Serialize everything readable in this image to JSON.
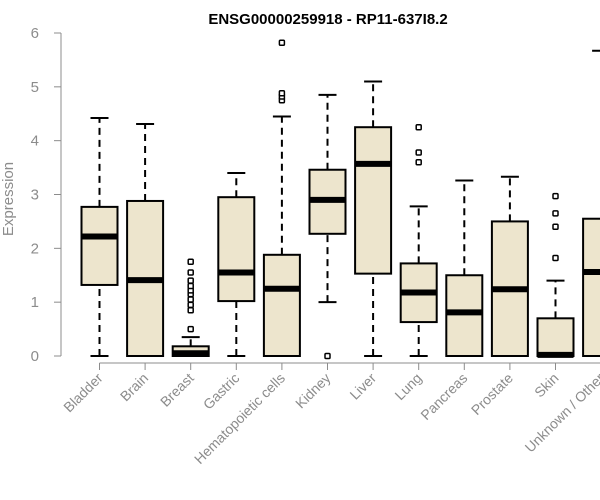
{
  "chart_data": {
    "type": "boxplot",
    "title": "ENSG00000259918 - RP11-637I8.2",
    "xlabel": "",
    "ylabel": "Expression",
    "ylim": [
      0,
      6
    ],
    "yticks": [
      "0",
      "1",
      "2",
      "3",
      "4",
      "5",
      "6"
    ],
    "categories": [
      "Bladder",
      "Brain",
      "Breast",
      "Gastric",
      "Hematopoietic cells",
      "Kidney",
      "Liver",
      "Lung",
      "Pancreas",
      "Prostate",
      "Skin",
      "Unknown / Other"
    ],
    "boxes": [
      {
        "min": 0.0,
        "q1": 1.32,
        "median": 2.22,
        "q3": 2.77,
        "max": 4.42,
        "outliers": []
      },
      {
        "min": 0.0,
        "q1": 0.0,
        "median": 1.41,
        "q3": 2.88,
        "max": 4.31,
        "outliers": []
      },
      {
        "min": 0.0,
        "q1": 0.0,
        "median": 0.05,
        "q3": 0.18,
        "max": 0.35,
        "outliers": [
          0.5,
          0.85,
          0.95,
          1.05,
          1.15,
          1.22,
          1.3,
          1.4,
          1.55,
          1.75
        ]
      },
      {
        "min": 0.0,
        "q1": 1.02,
        "median": 1.55,
        "q3": 2.95,
        "max": 3.4,
        "outliers": []
      },
      {
        "min": 0.0,
        "q1": 0.0,
        "median": 1.25,
        "q3": 1.88,
        "max": 4.45,
        "outliers": [
          4.75,
          4.82,
          4.88,
          5.82
        ]
      },
      {
        "min": 1.0,
        "q1": 2.27,
        "median": 2.9,
        "q3": 3.46,
        "max": 4.85,
        "outliers": [
          0.0
        ]
      },
      {
        "min": 0.0,
        "q1": 1.53,
        "median": 3.57,
        "q3": 4.25,
        "max": 5.1,
        "outliers": []
      },
      {
        "min": 0.0,
        "q1": 0.63,
        "median": 1.18,
        "q3": 1.72,
        "max": 2.78,
        "outliers": [
          3.6,
          3.78,
          4.25
        ]
      },
      {
        "min": 0.0,
        "q1": 0.0,
        "median": 0.81,
        "q3": 1.5,
        "max": 3.26,
        "outliers": []
      },
      {
        "min": 0.0,
        "q1": 0.0,
        "median": 1.24,
        "q3": 2.5,
        "max": 3.33,
        "outliers": []
      },
      {
        "min": 0.0,
        "q1": 0.0,
        "median": 0.02,
        "q3": 0.7,
        "max": 1.4,
        "outliers": [
          1.82,
          2.4,
          2.65,
          2.97
        ]
      },
      {
        "min": 0.0,
        "q1": 0.0,
        "median": 1.56,
        "q3": 2.55,
        "max": 5.67,
        "outliers": []
      }
    ],
    "colors": {
      "box_fill": "#ede5cd",
      "box_stroke": "#000000",
      "axis": "#8c8c8c",
      "title": "#000000"
    }
  }
}
